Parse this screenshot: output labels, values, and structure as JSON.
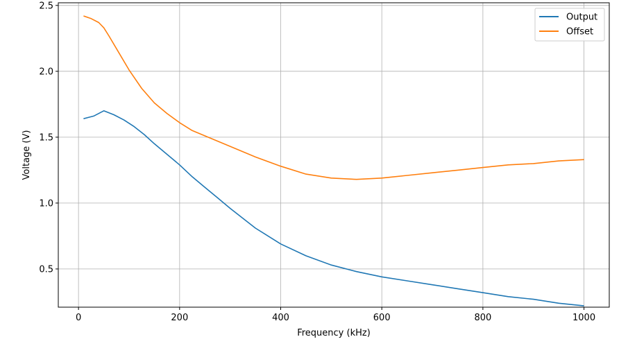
{
  "chart_data": {
    "type": "line",
    "title": "",
    "xlabel": "Frequency (kHz)",
    "ylabel": "Voltage (V)",
    "xlim": [
      -40,
      1050
    ],
    "ylim": [
      0.21,
      2.52
    ],
    "xticks": [
      0,
      200,
      400,
      600,
      800,
      1000
    ],
    "yticks": [
      0.5,
      1.0,
      1.5,
      2.0,
      2.5
    ],
    "xtick_labels": [
      "0",
      "200",
      "400",
      "600",
      "800",
      "1000"
    ],
    "ytick_labels": [
      "0.5",
      "1.0",
      "1.5",
      "2.0",
      "2.5"
    ],
    "grid": true,
    "legend": "top-right",
    "series": [
      {
        "name": "Output",
        "color": "#1f77b4",
        "x": [
          10,
          30,
          50,
          70,
          90,
          110,
          130,
          150,
          175,
          200,
          225,
          250,
          275,
          300,
          350,
          400,
          450,
          500,
          550,
          600,
          650,
          700,
          750,
          800,
          850,
          900,
          950,
          1000
        ],
        "y": [
          1.64,
          1.66,
          1.7,
          1.67,
          1.63,
          1.58,
          1.52,
          1.45,
          1.37,
          1.29,
          1.2,
          1.12,
          1.04,
          0.96,
          0.81,
          0.69,
          0.6,
          0.53,
          0.48,
          0.44,
          0.41,
          0.38,
          0.35,
          0.32,
          0.29,
          0.27,
          0.24,
          0.22
        ]
      },
      {
        "name": "Offset",
        "color": "#ff7f0e",
        "x": [
          10,
          25,
          40,
          50,
          60,
          80,
          100,
          125,
          150,
          175,
          200,
          225,
          250,
          300,
          350,
          400,
          450,
          500,
          550,
          600,
          650,
          700,
          750,
          800,
          850,
          900,
          950,
          1000
        ],
        "y": [
          2.42,
          2.4,
          2.37,
          2.33,
          2.27,
          2.14,
          2.01,
          1.87,
          1.76,
          1.68,
          1.61,
          1.55,
          1.51,
          1.43,
          1.35,
          1.28,
          1.22,
          1.19,
          1.18,
          1.19,
          1.21,
          1.23,
          1.25,
          1.27,
          1.29,
          1.3,
          1.32,
          1.33
        ]
      }
    ]
  }
}
